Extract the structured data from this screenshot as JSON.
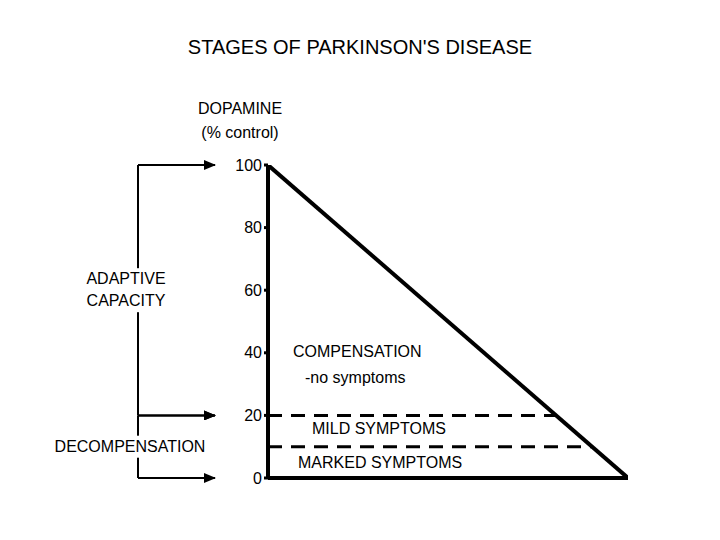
{
  "chart_data": {
    "type": "line",
    "title": "STAGES OF PARKINSON'S DISEASE",
    "y_label": [
      "DOPAMINE",
      "(% control)"
    ],
    "x": [
      0,
      100
    ],
    "values": [
      100,
      0
    ],
    "color": "#000000",
    "xlim": [
      0,
      100
    ],
    "ylim": [
      0,
      100
    ],
    "yticks": [
      0,
      20,
      40,
      60,
      80,
      100
    ],
    "tick_labels": "y",
    "thresholds": [
      20,
      10
    ],
    "line_style": "dashed",
    "annotations": [
      "COMPENSATION",
      "-no symptoms",
      "MILD SYMPTOMS",
      "MARKED SYMPTOMS"
    ],
    "brackets": [
      {
        "label": [
          "ADAPTIVE",
          "CAPACITY"
        ],
        "from": 100,
        "to": 20
      },
      {
        "label": [
          "DECOMPENSATION"
        ],
        "from": 20,
        "to": 0
      }
    ]
  }
}
